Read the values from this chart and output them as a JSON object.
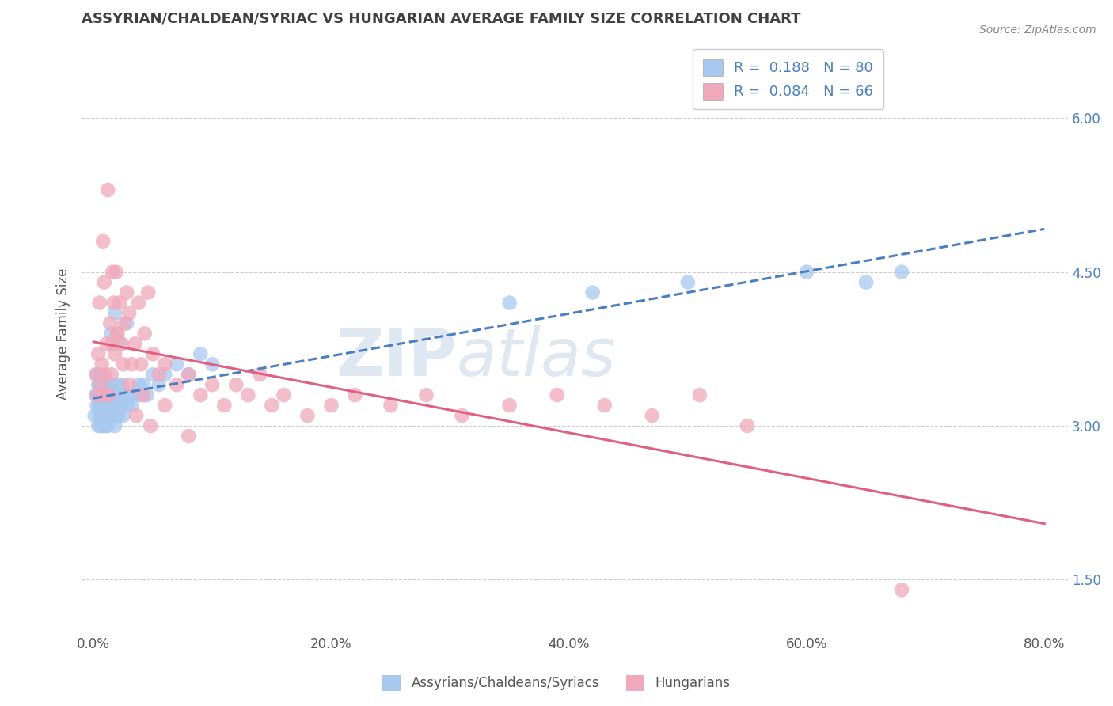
{
  "title": "ASSYRIAN/CHALDEAN/SYRIAC VS HUNGARIAN AVERAGE FAMILY SIZE CORRELATION CHART",
  "source": "Source: ZipAtlas.com",
  "ylabel": "Average Family Size",
  "xlim": [
    -0.01,
    0.82
  ],
  "ylim": [
    1.0,
    6.8
  ],
  "yticks_right": [
    1.5,
    3.0,
    4.5,
    6.0
  ],
  "xtick_labels": [
    "0.0%",
    "20.0%",
    "40.0%",
    "60.0%",
    "80.0%"
  ],
  "xtick_values": [
    0.0,
    0.2,
    0.4,
    0.6,
    0.8
  ],
  "blue_R": 0.188,
  "blue_N": 80,
  "pink_R": 0.084,
  "pink_N": 66,
  "blue_color": "#a8c8f0",
  "pink_color": "#f0a8bc",
  "blue_line_color": "#4a7fc0",
  "pink_line_color": "#e06080",
  "legend_blue_color": "#a8c8f0",
  "legend_pink_color": "#f0a8bc",
  "legend_text_color": "#4a7fc0",
  "watermark_zip_color": "#c8d4e4",
  "watermark_atlas_color": "#c0ccd8",
  "background_color": "#ffffff",
  "grid_color": "#cccccc",
  "title_color": "#404040",
  "blue_scatter_x": [
    0.001,
    0.002,
    0.003,
    0.003,
    0.004,
    0.004,
    0.004,
    0.005,
    0.005,
    0.005,
    0.005,
    0.006,
    0.006,
    0.006,
    0.006,
    0.007,
    0.007,
    0.007,
    0.007,
    0.008,
    0.008,
    0.008,
    0.008,
    0.009,
    0.009,
    0.009,
    0.01,
    0.01,
    0.01,
    0.01,
    0.011,
    0.011,
    0.011,
    0.012,
    0.012,
    0.013,
    0.013,
    0.014,
    0.014,
    0.015,
    0.015,
    0.016,
    0.016,
    0.017,
    0.018,
    0.018,
    0.019,
    0.02,
    0.02,
    0.021,
    0.022,
    0.023,
    0.024,
    0.025,
    0.026,
    0.028,
    0.03,
    0.032,
    0.035,
    0.038,
    0.04,
    0.042,
    0.045,
    0.05,
    0.055,
    0.06,
    0.07,
    0.08,
    0.09,
    0.1,
    0.015,
    0.018,
    0.022,
    0.028,
    0.35,
    0.42,
    0.5,
    0.6,
    0.65,
    0.68
  ],
  "blue_scatter_y": [
    3.1,
    3.3,
    3.2,
    3.5,
    3.0,
    3.3,
    3.4,
    3.1,
    3.2,
    3.4,
    3.3,
    3.0,
    3.2,
    3.4,
    3.5,
    3.1,
    3.3,
    3.2,
    3.4,
    3.0,
    3.2,
    3.3,
    3.1,
    3.4,
    3.2,
    3.3,
    3.0,
    3.2,
    3.3,
    3.4,
    3.1,
    3.2,
    3.4,
    3.0,
    3.3,
    3.2,
    3.4,
    3.1,
    3.3,
    3.2,
    3.4,
    3.1,
    3.3,
    3.2,
    3.0,
    3.3,
    3.1,
    3.2,
    3.4,
    3.1,
    3.3,
    3.2,
    3.4,
    3.1,
    3.3,
    3.2,
    3.3,
    3.2,
    3.3,
    3.4,
    3.3,
    3.4,
    3.3,
    3.5,
    3.4,
    3.5,
    3.6,
    3.5,
    3.7,
    3.6,
    3.9,
    4.1,
    3.8,
    4.0,
    4.2,
    4.3,
    4.4,
    4.5,
    4.4,
    4.5
  ],
  "pink_scatter_x": [
    0.002,
    0.003,
    0.004,
    0.005,
    0.006,
    0.007,
    0.008,
    0.009,
    0.01,
    0.011,
    0.013,
    0.014,
    0.015,
    0.016,
    0.017,
    0.018,
    0.019,
    0.02,
    0.022,
    0.024,
    0.026,
    0.028,
    0.03,
    0.032,
    0.035,
    0.038,
    0.04,
    0.043,
    0.046,
    0.05,
    0.055,
    0.06,
    0.07,
    0.08,
    0.09,
    0.1,
    0.11,
    0.12,
    0.13,
    0.14,
    0.15,
    0.16,
    0.18,
    0.2,
    0.22,
    0.25,
    0.28,
    0.31,
    0.35,
    0.39,
    0.43,
    0.47,
    0.51,
    0.55,
    0.008,
    0.012,
    0.016,
    0.02,
    0.025,
    0.03,
    0.036,
    0.042,
    0.048,
    0.06,
    0.08,
    0.68
  ],
  "pink_scatter_y": [
    3.5,
    3.3,
    3.7,
    4.2,
    3.4,
    3.6,
    3.3,
    4.4,
    3.5,
    3.8,
    3.3,
    4.0,
    3.5,
    3.8,
    4.2,
    3.7,
    4.5,
    3.9,
    4.2,
    3.8,
    4.0,
    4.3,
    4.1,
    3.6,
    3.8,
    4.2,
    3.6,
    3.9,
    4.3,
    3.7,
    3.5,
    3.6,
    3.4,
    3.5,
    3.3,
    3.4,
    3.2,
    3.4,
    3.3,
    3.5,
    3.2,
    3.3,
    3.1,
    3.2,
    3.3,
    3.2,
    3.3,
    3.1,
    3.2,
    3.3,
    3.2,
    3.1,
    3.3,
    3.0,
    4.8,
    5.3,
    4.5,
    3.9,
    3.6,
    3.4,
    3.1,
    3.3,
    3.0,
    3.2,
    2.9,
    1.4
  ]
}
